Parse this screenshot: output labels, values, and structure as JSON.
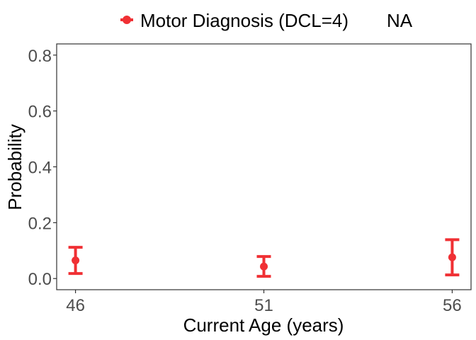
{
  "chart_data": {
    "type": "scatter",
    "title": "",
    "xlabel": "Current Age (years)",
    "ylabel": "Probability",
    "x": [
      46,
      51,
      56
    ],
    "x_ticks": [
      "46",
      "51",
      "56"
    ],
    "y_ticks": [
      "0.0",
      "0.2",
      "0.4",
      "0.6",
      "0.8"
    ],
    "xlim": [
      45.5,
      56.5
    ],
    "ylim": [
      -0.04,
      0.84
    ],
    "grid": false,
    "legend_position": "top",
    "legend": [
      "Motor Diagnosis (DCL=4)",
      "NA"
    ],
    "series": [
      {
        "name": "Motor Diagnosis (DCL=4)",
        "color": "#f03034",
        "values": [
          0.065,
          0.043,
          0.076
        ],
        "lower": [
          0.018,
          0.008,
          0.013
        ],
        "upper": [
          0.112,
          0.079,
          0.139
        ]
      }
    ]
  }
}
